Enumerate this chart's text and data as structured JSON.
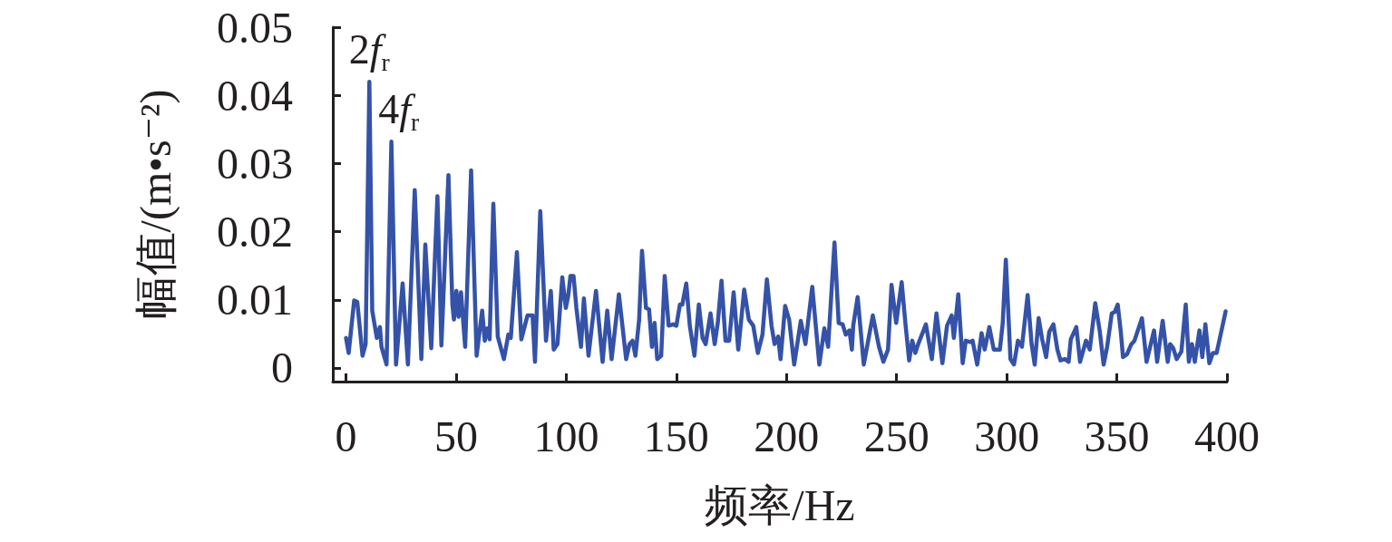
{
  "chart_data": {
    "type": "line",
    "xlabel": "频率/Hz",
    "ylabel": "幅值/(m•s⁻²)",
    "xlim": [
      -6,
      400
    ],
    "xticks": [
      0,
      50,
      100,
      150,
      200,
      250,
      300,
      350,
      400
    ],
    "ylim": [
      -0.002,
      0.05
    ],
    "yticks": [
      0,
      0.01,
      0.02,
      0.03,
      0.04,
      0.05
    ],
    "grid": false,
    "marker": "none",
    "line_style": "solid",
    "color": "#3452a8",
    "annotations": [
      {
        "text": "2f$_{r}$",
        "x": 10.6,
        "y": 0.042
      },
      {
        "text": "4f$_{r}$",
        "x": 20.6,
        "y": 0.0332
      }
    ],
    "x": [
      0,
      1.2,
      3.7,
      5.1,
      7.5,
      8.9,
      10.6,
      11.9,
      14,
      15.4,
      16.1,
      18.4,
      20.6,
      22.7,
      25.7,
      28.1,
      31.2,
      34.2,
      36,
      38.7,
      41.5,
      43.3,
      46.5,
      48.3,
      49,
      50.1,
      51.1,
      52.2,
      54.1,
      56.8,
      59.3,
      61.8,
      63,
      64.1,
      65.2,
      66.9,
      68.9,
      71.7,
      73.7,
      74.8,
      77.6,
      79.6,
      82.4,
      84.7,
      85.8,
      88.2,
      90.8,
      93,
      94.3,
      96,
      98.2,
      99.8,
      100.9,
      101.9,
      103.3,
      104.6,
      106.7,
      108,
      110.1,
      113.5,
      116.5,
      118.6,
      120.6,
      123.9,
      127.2,
      128.7,
      130.1,
      131.4,
      133.1,
      134.4,
      136.2,
      137.6,
      138.9,
      140.1,
      141.3,
      143.1,
      144.7,
      146.5,
      148.6,
      150,
      151.6,
      152.7,
      154.5,
      156.1,
      158.2,
      160.2,
      161.9,
      163.3,
      165.5,
      167.4,
      168.8,
      170.5,
      172.3,
      174,
      176,
      178.1,
      180.8,
      182.9,
      184.9,
      187,
      189.1,
      191.1,
      193.2,
      194.6,
      196.2,
      197.3,
      199.4,
      201.2,
      203.5,
      206.5,
      208.6,
      211.7,
      214.9,
      217.2,
      218.9,
      221.8,
      223.7,
      225.5,
      226.9,
      228.6,
      229.7,
      230.3,
      232.3,
      235.1,
      239.2,
      242,
      244,
      246.1,
      247.7,
      249.8,
      252.3,
      254.1,
      255.7,
      257.1,
      258.5,
      259.8,
      263.3,
      266,
      268.1,
      270.8,
      272.9,
      275,
      276,
      278,
      280,
      281.4,
      283.4,
      284.5,
      286.6,
      288.6,
      290,
      292.1,
      294.1,
      296.9,
      298.2,
      299.6,
      301.7,
      303.3,
      305.1,
      306.9,
      309.5,
      311.3,
      312.7,
      314.5,
      316.1,
      317.9,
      319.3,
      321.2,
      323,
      324.4,
      326.4,
      328.1,
      329.1,
      331.6,
      333.3,
      336,
      337.7,
      340.2,
      342.2,
      344,
      345.6,
      347.7,
      349,
      350.4,
      351.8,
      352.8,
      354.6,
      356.6,
      358,
      361.4,
      363.5,
      366.9,
      368.3,
      370.8,
      373.1,
      374.2,
      375.6,
      377.2,
      379.3,
      381.3,
      382.7,
      384.1,
      385.4,
      387.5,
      388.8,
      390.2,
      392,
      393.6,
      395.3,
      397.4,
      399.4
    ],
    "values": [
      0.0044,
      0.0022,
      0.0099,
      0.0097,
      0.0018,
      0.0035,
      0.042,
      0.0084,
      0.0044,
      0.006,
      0.0031,
      0.0005,
      0.0332,
      0.0005,
      0.0124,
      0.0005,
      0.0261,
      0.0013,
      0.0181,
      0.0029,
      0.0252,
      0.0033,
      0.0283,
      0.0093,
      0.0071,
      0.0113,
      0.0075,
      0.0111,
      0.0031,
      0.029,
      0.0018,
      0.0084,
      0.004,
      0.0058,
      0.0042,
      0.0241,
      0.0046,
      0.0013,
      0.0049,
      0.0044,
      0.017,
      0.0042,
      0.0077,
      0.0077,
      0.0009,
      0.023,
      0.004,
      0.0113,
      0.0027,
      0.0035,
      0.0133,
      0.0088,
      0.0106,
      0.0135,
      0.0135,
      0.0088,
      0.0031,
      0.0102,
      0.0018,
      0.0113,
      0.0009,
      0.0084,
      0.0013,
      0.0108,
      0.0013,
      0.0035,
      0.004,
      0.0018,
      0.0071,
      0.0172,
      0.0088,
      0.0086,
      0.0031,
      0.0066,
      0.0013,
      0.0018,
      0.0135,
      0.0062,
      0.0064,
      0.0062,
      0.0093,
      0.0093,
      0.0124,
      0.0062,
      0.0018,
      0.0093,
      0.0044,
      0.0035,
      0.008,
      0.0035,
      0.0066,
      0.0128,
      0.004,
      0.004,
      0.0111,
      0.0027,
      0.0115,
      0.0071,
      0.0062,
      0.0022,
      0.0049,
      0.013,
      0.0062,
      0.0035,
      0.0046,
      0.0013,
      0.0091,
      0.0071,
      0.0005,
      0.0069,
      0.0035,
      0.0119,
      0.0005,
      0.0058,
      0.0031,
      0.0184,
      0.0066,
      0.0064,
      0.0049,
      0.0055,
      0.0027,
      0.0062,
      0.0104,
      0.0005,
      0.0077,
      0.0031,
      0.0009,
      0.0027,
      0.0122,
      0.0066,
      0.0126,
      0.0062,
      0.0011,
      0.004,
      0.0022,
      0.0035,
      0.0064,
      0.0013,
      0.008,
      0.0007,
      0.0062,
      0.0077,
      0.0044,
      0.0108,
      0.0007,
      0.004,
      0.0038,
      0.004,
      0.0005,
      0.0051,
      0.0027,
      0.006,
      0.0027,
      0.0027,
      0.0066,
      0.0159,
      0.0013,
      0.0005,
      0.004,
      0.0031,
      0.0107,
      0.0035,
      0.0005,
      0.0073,
      0.0042,
      0.0016,
      0.0053,
      0.0064,
      0.0027,
      0.0011,
      0.0013,
      0.0009,
      0.0042,
      0.006,
      0.0009,
      0.004,
      0.0027,
      0.0095,
      0.0055,
      0.0005,
      0.0031,
      0.008,
      0.0082,
      0.0093,
      0.0053,
      0.0016,
      0.002,
      0.0035,
      0.004,
      0.0073,
      0.0009,
      0.0055,
      0.0009,
      0.0069,
      0.0009,
      0.0035,
      0.0029,
      0.0013,
      0.0024,
      0.0093,
      0.0009,
      0.0035,
      0.0009,
      0.0055,
      0.0016,
      0.0064,
      0.0007,
      0.0022,
      0.0022,
      0.0053,
      0.0083
    ]
  }
}
